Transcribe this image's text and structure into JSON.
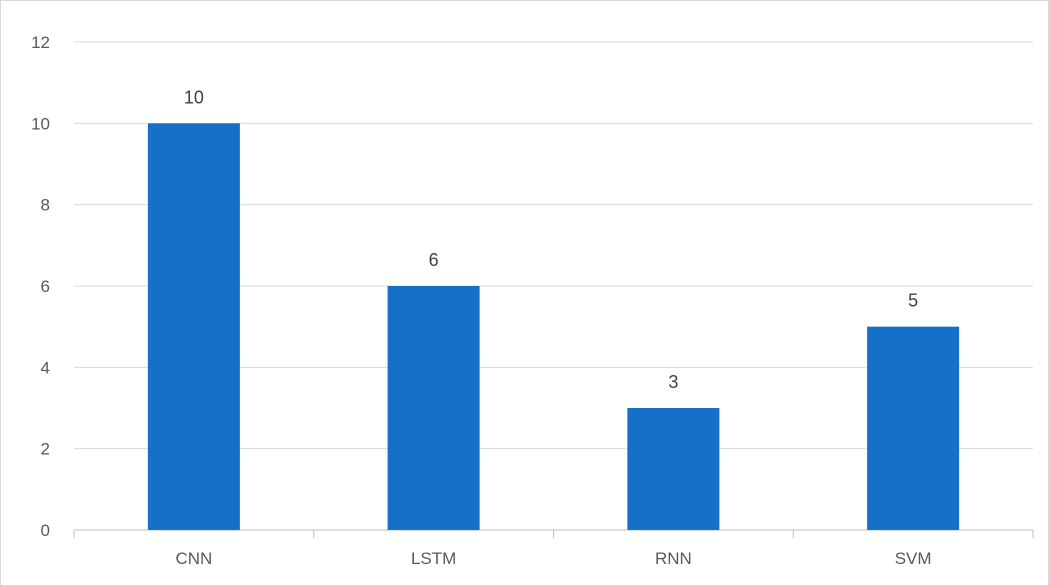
{
  "chart_data": {
    "type": "bar",
    "title": "",
    "xlabel": "",
    "ylabel": "",
    "categories": [
      "CNN",
      "LSTM",
      "RNN",
      "SVM"
    ],
    "values": [
      10,
      6,
      3,
      5
    ],
    "data_labels": [
      "10",
      "6",
      "3",
      "5"
    ],
    "ylim": [
      0,
      12
    ],
    "yticks": [
      0,
      2,
      4,
      6,
      8,
      10,
      12
    ],
    "ytick_labels": [
      "0",
      "2",
      "4",
      "6",
      "8",
      "10",
      "12"
    ],
    "grid": true,
    "legend": "none",
    "colors": {
      "bar": "#1570C8",
      "gridline": "#d9d9d9",
      "axis": "#bfbfbf"
    }
  }
}
